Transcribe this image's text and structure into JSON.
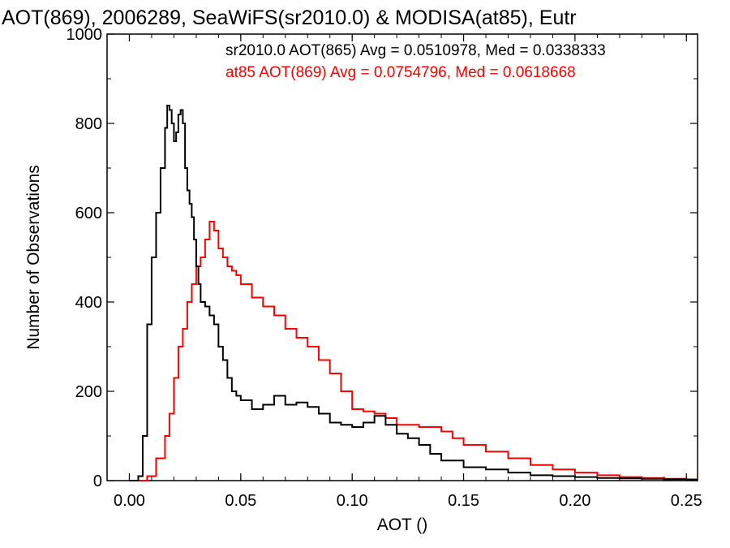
{
  "chart_data": {
    "type": "line",
    "title": "AOT(869), 2006289, SeaWiFS(sr2010.0) & MODISA(at85), Eutr",
    "xlabel": "AOT ()",
    "ylabel": "Number of Observations",
    "xlim": [
      -0.01,
      0.255
    ],
    "ylim": [
      0,
      1000
    ],
    "x_ticks": [
      0.0,
      0.05,
      0.1,
      0.15,
      0.2,
      0.25
    ],
    "x_tick_labels": [
      "0.00",
      "0.05",
      "0.10",
      "0.15",
      "0.20",
      "0.25"
    ],
    "y_ticks": [
      0,
      200,
      400,
      600,
      800,
      1000
    ],
    "y_tick_labels": [
      "0",
      "200",
      "400",
      "600",
      "800",
      "1000"
    ],
    "grid": false,
    "annotations": [
      "sr2010.0 AOT(865) Avg = 0.0510978, Med = 0.0338333",
      "at85 AOT(869) Avg = 0.0754796, Med = 0.0618668"
    ],
    "series": [
      {
        "color": "#000000",
        "x": [
          0.0,
          0.004,
          0.006,
          0.008,
          0.01,
          0.012,
          0.014,
          0.016,
          0.017,
          0.018,
          0.019,
          0.02,
          0.021,
          0.022,
          0.023,
          0.024,
          0.025,
          0.026,
          0.027,
          0.028,
          0.029,
          0.03,
          0.031,
          0.032,
          0.034,
          0.036,
          0.038,
          0.04,
          0.042,
          0.044,
          0.046,
          0.048,
          0.05,
          0.055,
          0.06,
          0.065,
          0.07,
          0.075,
          0.08,
          0.085,
          0.09,
          0.095,
          0.1,
          0.105,
          0.11,
          0.115,
          0.12,
          0.125,
          0.13,
          0.135,
          0.14,
          0.15,
          0.16,
          0.17,
          0.18,
          0.19,
          0.2,
          0.21,
          0.22,
          0.23,
          0.24,
          0.25
        ],
        "y": [
          0,
          10,
          100,
          350,
          500,
          600,
          700,
          790,
          840,
          830,
          800,
          760,
          780,
          820,
          830,
          800,
          700,
          650,
          620,
          590,
          540,
          480,
          440,
          400,
          390,
          370,
          350,
          300,
          270,
          230,
          200,
          190,
          180,
          160,
          170,
          190,
          170,
          175,
          165,
          150,
          130,
          125,
          120,
          130,
          145,
          125,
          105,
          95,
          80,
          60,
          45,
          30,
          25,
          18,
          12,
          10,
          8,
          6,
          5,
          4,
          3,
          2
        ]
      },
      {
        "color": "#ff0000",
        "x": [
          0.0,
          0.008,
          0.012,
          0.016,
          0.018,
          0.02,
          0.022,
          0.024,
          0.026,
          0.028,
          0.03,
          0.032,
          0.034,
          0.036,
          0.038,
          0.04,
          0.042,
          0.044,
          0.046,
          0.048,
          0.05,
          0.055,
          0.06,
          0.065,
          0.07,
          0.075,
          0.08,
          0.085,
          0.09,
          0.095,
          0.1,
          0.105,
          0.11,
          0.115,
          0.12,
          0.125,
          0.13,
          0.135,
          0.14,
          0.145,
          0.15,
          0.16,
          0.17,
          0.18,
          0.19,
          0.2,
          0.21,
          0.22,
          0.23,
          0.24,
          0.25
        ],
        "y": [
          0,
          10,
          50,
          100,
          150,
          230,
          300,
          340,
          400,
          440,
          480,
          500,
          540,
          580,
          560,
          520,
          500,
          480,
          470,
          460,
          440,
          410,
          390,
          370,
          340,
          320,
          300,
          270,
          240,
          200,
          160,
          155,
          150,
          140,
          125,
          125,
          120,
          120,
          110,
          95,
          80,
          65,
          50,
          35,
          25,
          18,
          12,
          8,
          6,
          4,
          3
        ]
      }
    ]
  }
}
